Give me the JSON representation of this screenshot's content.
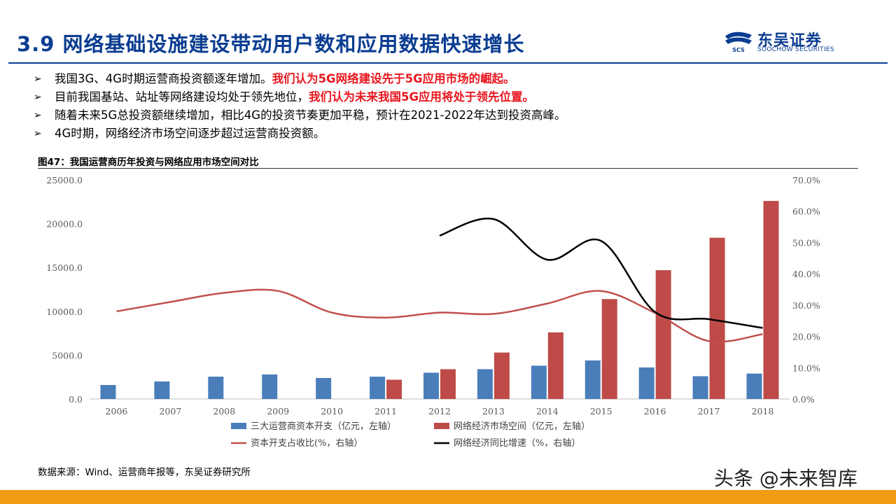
{
  "header": {
    "title": "3.9 网络基础设施建设带动用户数和应用数据快速增长"
  },
  "brand": {
    "name_cn": "东吴证券",
    "name_en": "SOOCHOW SECURITIES",
    "logo_text": "SCS",
    "color": "#0b3d91"
  },
  "bullets": [
    {
      "text": "我国3G、4G时期运营商投资额逐年增加。",
      "emphasis": "我们认为5G网络建设先于5G应用市场的崛起。"
    },
    {
      "text": "目前我国基站、站址等网络建设均处于领先地位，",
      "emphasis": "我们认为未来我国5G应用将处于领先位置。"
    },
    {
      "text": "随着未来5G总投资额继续增加，相比4G的投资节奏更加平稳，预计在2021-2022年达到投资高峰。",
      "emphasis": ""
    },
    {
      "text": "4G时期，网络经济市场空间逐步超过运营商投资额。",
      "emphasis": ""
    }
  ],
  "figure": {
    "title": "图47：我国运营商历年投资与网络应用市场空间对比"
  },
  "chart_data": {
    "type": "bar",
    "categories": [
      "2006",
      "2007",
      "2008",
      "2009",
      "2010",
      "2011",
      "2012",
      "2013",
      "2014",
      "2015",
      "2016",
      "2017",
      "2018"
    ],
    "y_left": {
      "min": 0,
      "max": 25000,
      "step": 5000,
      "ticks": [
        "0.0",
        "5000.0",
        "10000.0",
        "15000.0",
        "20000.0",
        "25000.0"
      ]
    },
    "y_right": {
      "min": 0,
      "max": 70,
      "step": 10,
      "ticks": [
        "0.0%",
        "10.0%",
        "20.0%",
        "30.0%",
        "40.0%",
        "50.0%",
        "60.0%",
        "70.0%"
      ]
    },
    "grid": false,
    "legend_position": "bottom",
    "series": [
      {
        "name": "三大运营商资本开支（亿元，左轴）",
        "type": "bar",
        "axis": "left",
        "color": "#4a7ebb",
        "values": [
          1600,
          2000,
          2550,
          2800,
          2400,
          2550,
          3000,
          3400,
          3800,
          4400,
          3600,
          2600,
          2900
        ]
      },
      {
        "name": "网络经济市场空间（亿元，左轴）",
        "type": "bar",
        "axis": "left",
        "color": "#be4b48",
        "values": [
          null,
          null,
          null,
          null,
          null,
          2200,
          3400,
          5300,
          7600,
          11400,
          14700,
          18400,
          22600
        ]
      },
      {
        "name": "资本开支占收比(%，右轴）",
        "type": "line",
        "axis": "right",
        "color": "#c0504d",
        "values": [
          28.0,
          31.0,
          33.9,
          34.5,
          27.6,
          26.0,
          27.6,
          27.2,
          30.5,
          34.5,
          27.5,
          18.5,
          20.7
        ]
      },
      {
        "name": "网络经济同比增速（%，右轴）",
        "type": "line",
        "axis": "right",
        "color": "#000000",
        "values": [
          null,
          null,
          null,
          null,
          null,
          null,
          52.2,
          57.5,
          44.5,
          50.5,
          27.8,
          25.5,
          22.7
        ]
      }
    ]
  },
  "source": "数据来源：Wind、运营商年报等，东吴证券研究所",
  "watermark": "头条 @未来智库",
  "colors": {
    "accent": "#0b3d91",
    "emphasis": "#e8171f",
    "footer": "#f39c12"
  }
}
